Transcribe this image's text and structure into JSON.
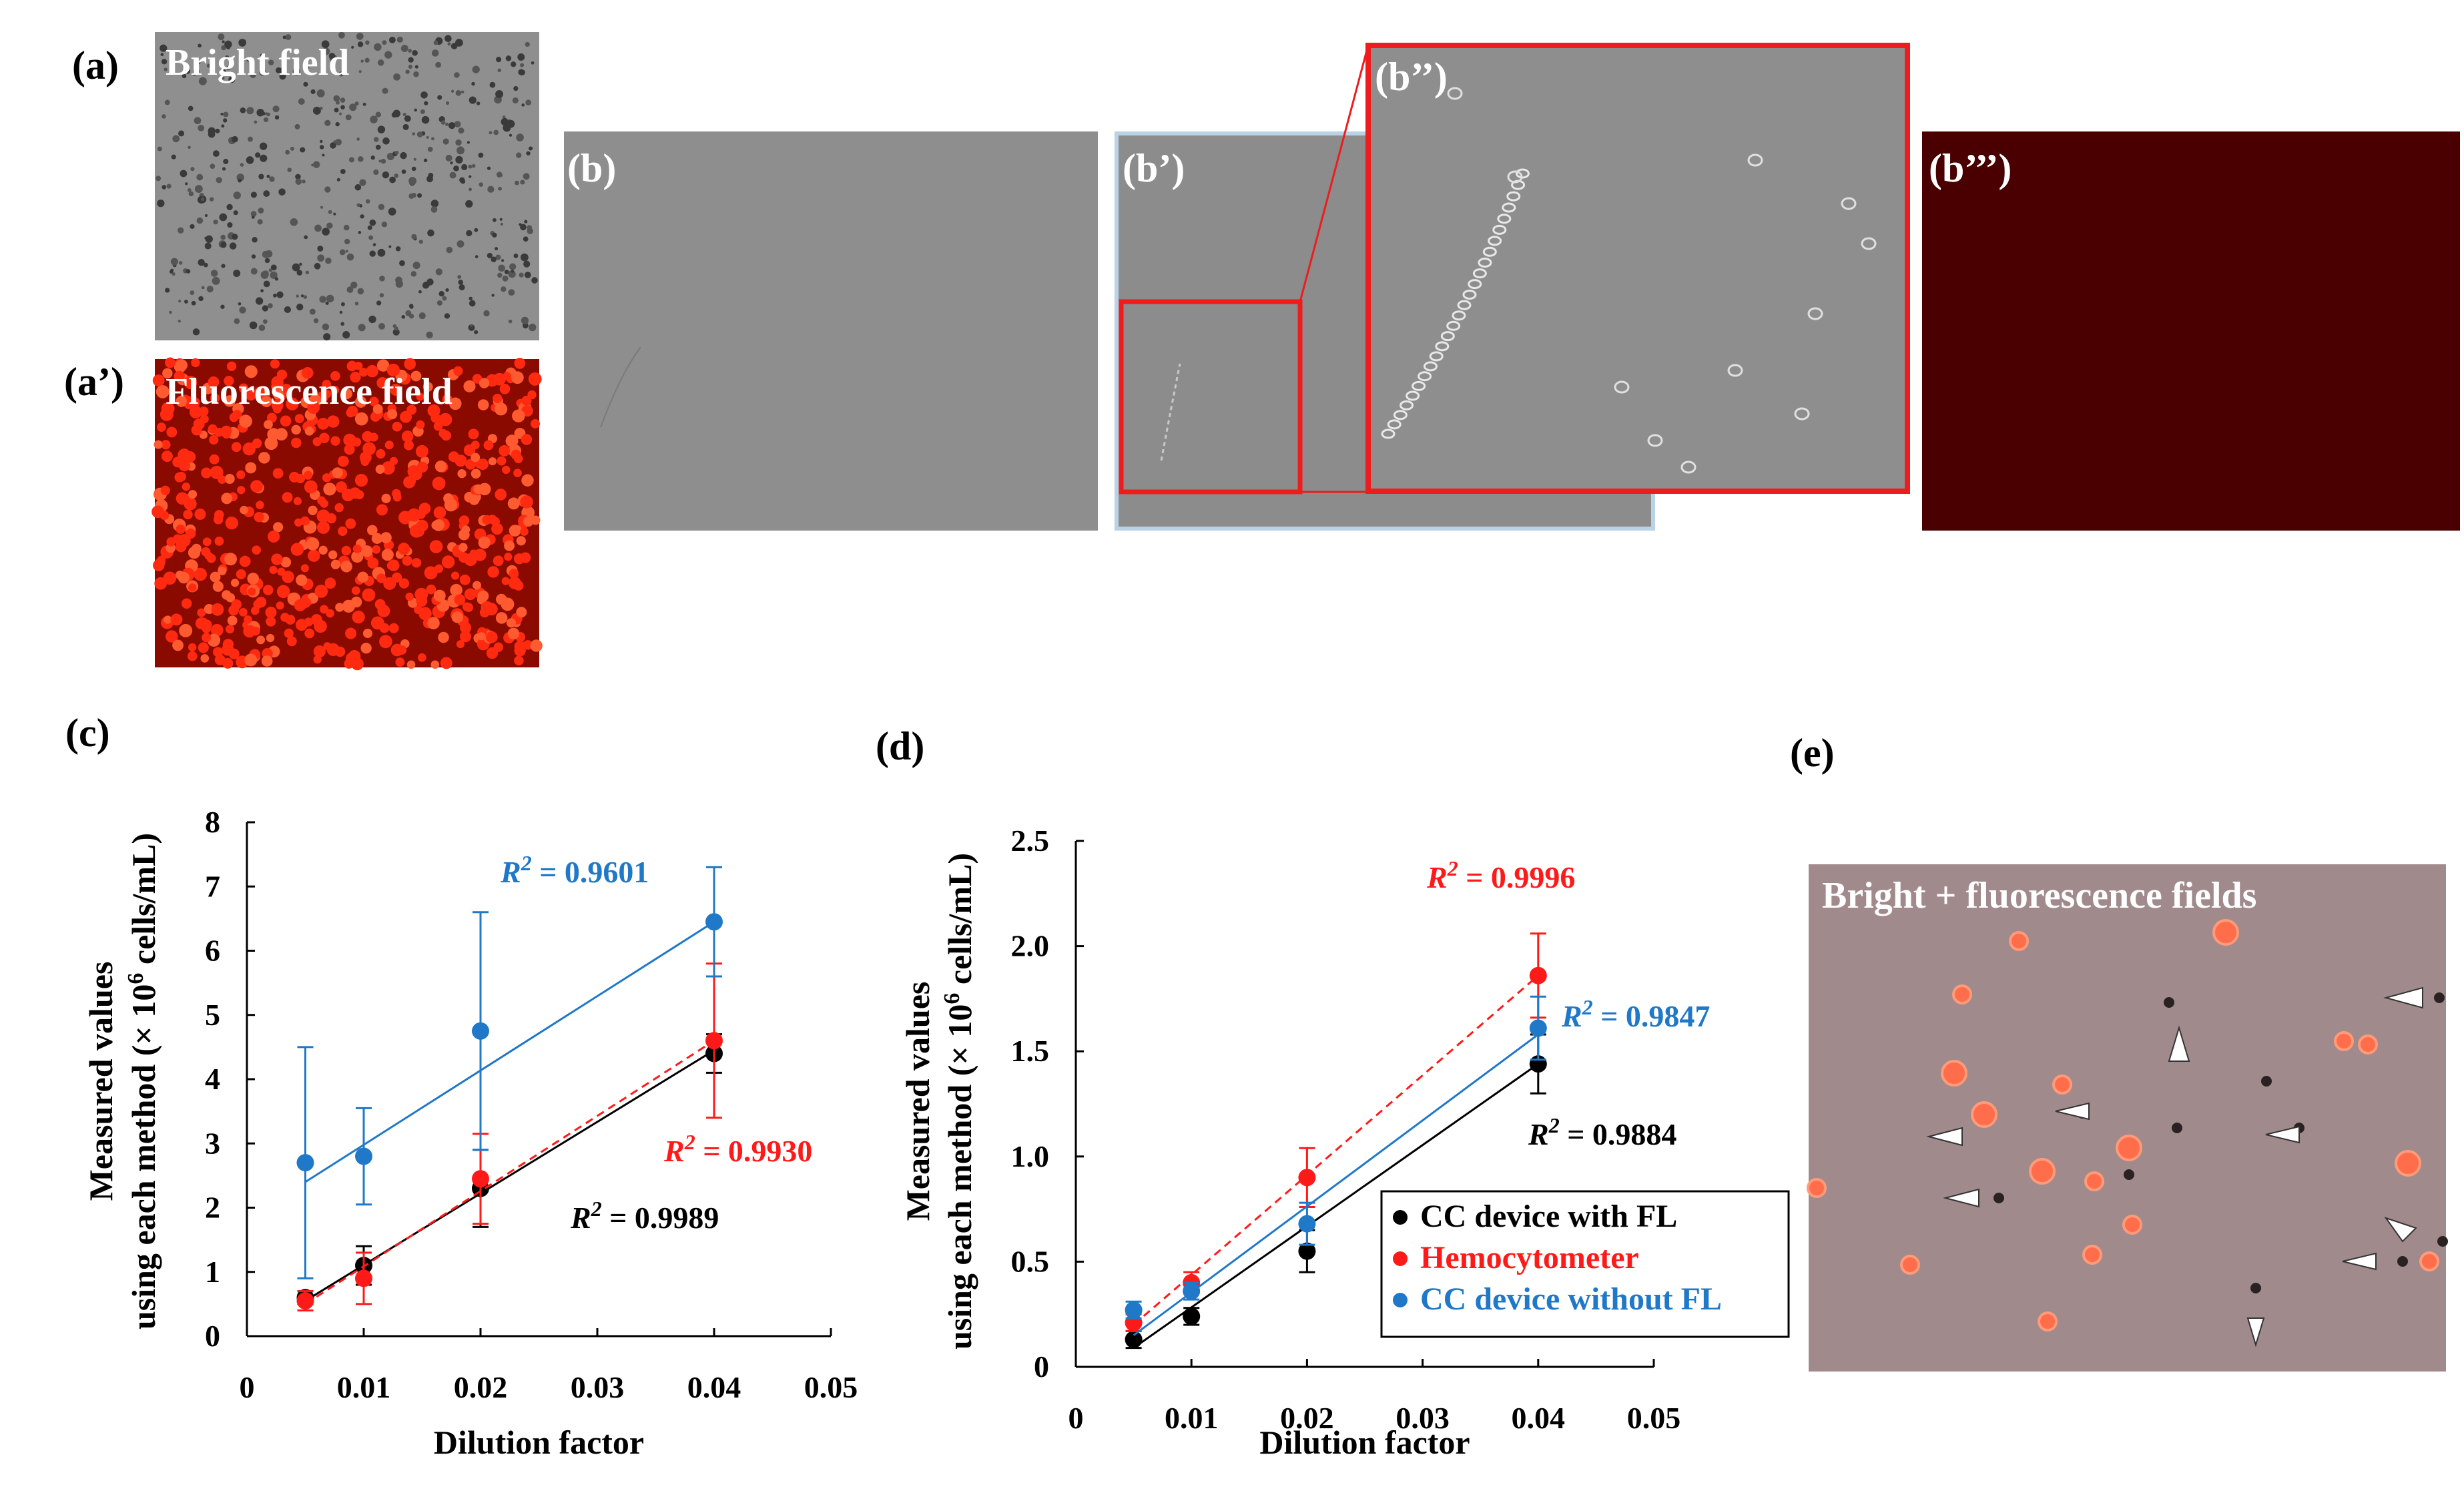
{
  "colors": {
    "black": "#000000",
    "red": "#ff1a1a",
    "blue": "#1f78c8",
    "gray_image": "#8c8c8c",
    "fluor_bg": "#8a0a00",
    "dark_red": "#4a0000",
    "merged_bg": "#a08a8c"
  },
  "panels": {
    "a": {
      "label": "(a)",
      "caption": "Bright  field",
      "icon": "cell-micrograph-bright"
    },
    "a_prime": {
      "label": "(a’)",
      "caption": "Fluorescence field",
      "icon": "cell-micrograph-fluorescence"
    },
    "b": {
      "label": "(b)"
    },
    "b_prime": {
      "label": "(b’)"
    },
    "b_dprime": {
      "label": "(b’’)"
    },
    "b_tprime": {
      "label": "(b’’’)"
    },
    "e": {
      "label": "(e)",
      "caption": "Bright + fluorescence  fields"
    },
    "c": {
      "label": "(c)"
    },
    "d": {
      "label": "(d)"
    }
  },
  "chart_data": [
    {
      "id": "c",
      "type": "scatter",
      "xlabel": "Dilution factor",
      "ylabel_line1": "Measured values",
      "ylabel_line2_prefix": "using each method (× 10",
      "ylabel_sup": "6",
      "ylabel_line2_suffix": " cells/mL)",
      "xlim": [
        0,
        0.05
      ],
      "ylim": [
        0,
        8
      ],
      "xticks": [
        "0",
        "0.01",
        "0.02",
        "0.03",
        "0.04",
        "0.05"
      ],
      "yticks": [
        "0",
        "1",
        "2",
        "3",
        "4",
        "5",
        "6",
        "7",
        "8"
      ],
      "x": [
        0.005,
        0.01,
        0.02,
        0.04
      ],
      "series": [
        {
          "name": "CC device with FL",
          "color": "#000000",
          "values": [
            0.6,
            1.1,
            2.3,
            4.4
          ],
          "err": [
            0.1,
            0.3,
            0.6,
            0.3
          ],
          "line": "solid",
          "fit": [
            0.005,
            0.55,
            0.04,
            4.45
          ],
          "r2_label": "= 0.9989",
          "r2_pos": "lower-right"
        },
        {
          "name": "Hemocytometer",
          "color": "#ff1a1a",
          "values": [
            0.55,
            0.9,
            2.45,
            4.6
          ],
          "err": [
            0.15,
            0.4,
            0.7,
            1.2
          ],
          "line": "dashed",
          "fit": [
            0.005,
            0.5,
            0.04,
            4.6
          ],
          "r2_label": "= 0.9930",
          "r2_pos": "right"
        },
        {
          "name": "CC device without FL",
          "color": "#1f78c8",
          "values": [
            2.7,
            2.8,
            4.75,
            6.45
          ],
          "err": [
            1.8,
            0.75,
            1.85,
            0.85
          ],
          "line": "solid",
          "fit": [
            0.005,
            2.4,
            0.04,
            6.45
          ],
          "r2_label": "= 0.9601",
          "r2_pos": "top"
        }
      ]
    },
    {
      "id": "d",
      "type": "scatter",
      "xlabel": "Dilution factor",
      "ylabel_line1": "Measured values",
      "ylabel_line2_prefix": "using each method (× 10",
      "ylabel_sup": "6",
      "ylabel_line2_suffix": " cells/mL)",
      "xlim": [
        0,
        0.05
      ],
      "ylim": [
        0,
        2.5
      ],
      "xticks": [
        "0",
        "0.01",
        "0.02",
        "0.03",
        "0.04",
        "0.05"
      ],
      "yticks": [
        "0",
        "0.5",
        "1.0",
        "1.5",
        "2.0",
        "2.5"
      ],
      "x": [
        0.005,
        0.01,
        0.02,
        0.04
      ],
      "series": [
        {
          "name": "CC device with FL",
          "color": "#000000",
          "values": [
            0.13,
            0.24,
            0.55,
            1.44
          ],
          "err": [
            0.04,
            0.04,
            0.1,
            0.14
          ],
          "line": "solid",
          "fit": [
            0.005,
            0.09,
            0.04,
            1.44
          ],
          "r2_label": "= 0.9884",
          "r2_pos": "below"
        },
        {
          "name": "Hemocytometer",
          "color": "#ff1a1a",
          "values": [
            0.21,
            0.4,
            0.9,
            1.86
          ],
          "err": [
            0.04,
            0.05,
            0.14,
            0.2
          ],
          "line": "dashed",
          "fit": [
            0.005,
            0.2,
            0.04,
            1.86
          ],
          "r2_label": "= 0.9996",
          "r2_pos": "top"
        },
        {
          "name": "CC device without FL",
          "color": "#1f78c8",
          "values": [
            0.27,
            0.36,
            0.68,
            1.61
          ],
          "err": [
            0.04,
            0.04,
            0.1,
            0.15
          ],
          "line": "solid",
          "fit": [
            0.005,
            0.15,
            0.04,
            1.58
          ],
          "r2_label": "= 0.9847",
          "r2_pos": "right"
        }
      ],
      "legend": [
        "CC device with FL",
        "Hemocytometer",
        "CC device without FL"
      ]
    }
  ]
}
